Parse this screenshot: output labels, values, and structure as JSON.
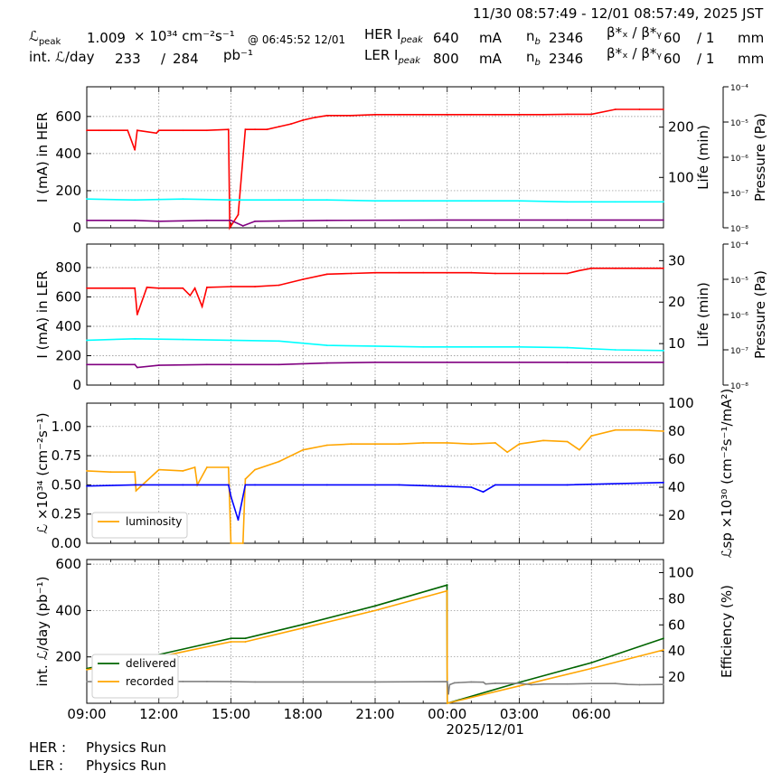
{
  "header": {
    "time_range": "11/30 08:57:49 - 12/01 08:57:49, 2025 JST",
    "lpeak_value": "1.009",
    "lpeak_unit": "× 10³⁴ cm⁻²s⁻¹",
    "lpeak_time": "@ 06:45:52 12/01",
    "intl_label": "int. ℒ/day",
    "intl_value": "233",
    "intl_slash": "/",
    "intl_total": "284",
    "intl_unit": "pb⁻¹",
    "her_label": "HER I",
    "her_ipeak": "640",
    "ler_label": "LER I",
    "ler_ipeak": "800",
    "ma": "mA",
    "nb_value_her": "2346",
    "nb_value_ler": "2346",
    "beta_label": "β*ₓ / β*ᵧ",
    "beta_x": "60",
    "beta_y": "/ 1",
    "beta_unit": "mm",
    "peak_sub": "peak"
  },
  "footer": {
    "her_status_label": "HER :",
    "her_status": "Physics Run",
    "ler_status_label": "LER :",
    "ler_status": "Physics Run"
  },
  "chart_data": [
    {
      "type": "line",
      "panel": "HER",
      "ylabel": "I (mA) in HER",
      "y2label": "Life (min)",
      "y3label": "Pressure (Pa)",
      "ylim": [
        0,
        760
      ],
      "yticks": [
        0,
        200,
        400,
        600
      ],
      "y2ticks": [
        100,
        200
      ],
      "y3ticks": [
        "10⁻⁸",
        "10⁻⁷",
        "10⁻⁶",
        "10⁻⁵",
        "10⁻⁴"
      ],
      "colors": {
        "current": "#ff0000",
        "life": "#00ffff",
        "pressure": "#800080"
      },
      "series": [
        {
          "color": "#ff0000",
          "x": [
            0,
            0.5,
            1.0,
            1.7,
            2.0,
            2.1,
            2.9,
            3.0,
            4.0,
            5.0,
            5.9,
            5.95,
            6.0,
            6.3,
            6.6,
            7.0,
            7.5,
            8.0,
            8.5,
            9.0,
            9.5,
            10.0,
            11.0,
            12.0,
            13.0,
            14.0,
            15.0,
            16.0,
            17.0,
            18.0,
            19.0,
            20.0,
            21.0,
            22.0,
            23.0,
            24.0
          ],
          "y": [
            525,
            525,
            525,
            525,
            420,
            525,
            510,
            525,
            525,
            525,
            530,
            0,
            10,
            70,
            530,
            530,
            530,
            545,
            560,
            580,
            595,
            605,
            605,
            610,
            610,
            610,
            610,
            610,
            610,
            610,
            610,
            612,
            612,
            638,
            638,
            638
          ]
        },
        {
          "color": "#800080",
          "x": [
            0,
            2,
            3,
            5,
            6,
            6.5,
            7,
            10,
            15,
            20,
            24
          ],
          "y": [
            40,
            40,
            35,
            40,
            40,
            10,
            35,
            40,
            42,
            42,
            42
          ]
        },
        {
          "color": "#00ffff",
          "x": [
            0,
            2,
            4,
            6,
            8,
            10,
            12,
            14,
            16,
            18,
            20,
            22,
            24
          ],
          "y": [
            155,
            150,
            155,
            150,
            150,
            150,
            145,
            145,
            145,
            145,
            140,
            140,
            140
          ]
        }
      ]
    },
    {
      "type": "line",
      "panel": "LER",
      "ylabel": "I (mA) in LER",
      "y2label": "Life (min)",
      "y3label": "Pressure (Pa)",
      "ylim": [
        0,
        960
      ],
      "yticks": [
        0,
        200,
        400,
        600,
        800
      ],
      "y2ticks": [
        10,
        20,
        30
      ],
      "y3ticks": [
        "10⁻⁸",
        "10⁻⁷",
        "10⁻⁶",
        "10⁻⁵",
        "10⁻⁴"
      ],
      "colors": {
        "current": "#ff0000",
        "life": "#00ffff",
        "pressure": "#800080"
      },
      "series": [
        {
          "color": "#ff0000",
          "x": [
            0,
            1.5,
            2.0,
            2.1,
            2.5,
            3.0,
            3.2,
            4.0,
            4.3,
            4.5,
            4.8,
            5.0,
            6.0,
            7.0,
            8.0,
            9.0,
            10.0,
            11.0,
            12.0,
            13.0,
            14.0,
            15.0,
            16.0,
            17.0,
            18.0,
            19.0,
            20.0,
            20.5,
            21.0,
            22.0,
            23.0,
            24.0
          ],
          "y": [
            660,
            660,
            660,
            480,
            665,
            660,
            660,
            660,
            610,
            660,
            535,
            665,
            670,
            670,
            680,
            720,
            755,
            760,
            765,
            765,
            765,
            765,
            765,
            760,
            760,
            760,
            760,
            780,
            795,
            795,
            795,
            795
          ]
        },
        {
          "color": "#800080",
          "x": [
            0,
            2,
            2.1,
            3,
            5,
            8,
            10,
            12,
            15,
            18,
            20,
            24
          ],
          "y": [
            140,
            140,
            120,
            135,
            140,
            140,
            150,
            155,
            155,
            155,
            155,
            155
          ]
        },
        {
          "color": "#00ffff",
          "x": [
            0,
            2,
            4,
            6,
            8,
            10,
            12,
            14,
            16,
            18,
            20,
            22,
            24
          ],
          "y": [
            305,
            315,
            310,
            305,
            300,
            270,
            265,
            260,
            260,
            260,
            255,
            240,
            235
          ]
        }
      ]
    },
    {
      "type": "line",
      "panel": "luminosity",
      "ylabel": "ℒ ×10³⁴ (cm⁻²s⁻¹)",
      "y2label": "ℒsp ×10³⁰ (cm⁻²s⁻¹/mA²)",
      "ylim": [
        0,
        1.2
      ],
      "yticks": [
        "0.00",
        "0.25",
        "0.50",
        "0.75",
        "1.00"
      ],
      "y2lim": [
        0,
        100
      ],
      "y2ticks": [
        20,
        40,
        60,
        80,
        100
      ],
      "legend": "lower left",
      "series": [
        {
          "name": "luminosity",
          "color": "#ffa500",
          "x": [
            0,
            1,
            2,
            2.05,
            3,
            4,
            4.5,
            4.6,
            5,
            5.9,
            6.0,
            6.5,
            6.6,
            7,
            8,
            9,
            10,
            11,
            12,
            13,
            14,
            15,
            16,
            17,
            17.5,
            18,
            19,
            20,
            20.5,
            21,
            22,
            23,
            24
          ],
          "y": [
            0.62,
            0.61,
            0.61,
            0.45,
            0.63,
            0.62,
            0.65,
            0.5,
            0.65,
            0.65,
            0.0,
            0.0,
            0.55,
            0.63,
            0.7,
            0.8,
            0.84,
            0.85,
            0.85,
            0.85,
            0.86,
            0.86,
            0.85,
            0.86,
            0.78,
            0.85,
            0.88,
            0.87,
            0.8,
            0.92,
            0.97,
            0.97,
            0.96
          ]
        },
        {
          "color": "#0000ff",
          "x": [
            0,
            2,
            4,
            5.9,
            6.0,
            6.3,
            6.6,
            7,
            10,
            13,
            16,
            16.5,
            17,
            20,
            24
          ],
          "y": [
            0.49,
            0.5,
            0.5,
            0.5,
            0.4,
            0.2,
            0.5,
            0.5,
            0.5,
            0.5,
            0.48,
            0.44,
            0.5,
            0.5,
            0.52
          ]
        }
      ]
    },
    {
      "type": "line",
      "panel": "integrated",
      "ylabel": "int. ℒ/day (pb⁻¹)",
      "y2label": "Efficiency (%)",
      "ylim": [
        0,
        620
      ],
      "yticks": [
        200,
        400,
        600
      ],
      "y2lim": [
        0,
        110
      ],
      "y2ticks": [
        20,
        40,
        60,
        80,
        100
      ],
      "x_tick_labels": [
        "09:00",
        "12:00",
        "15:00",
        "18:00",
        "21:00",
        "00:00",
        "03:00",
        "06:00"
      ],
      "x_date_label": "2025/12/01",
      "legend": "lower left",
      "series": [
        {
          "name": "delivered",
          "color": "#006400",
          "x": [
            0,
            3,
            6,
            6.6,
            9,
            12,
            15,
            14.99,
            15.0,
            18,
            21,
            24
          ],
          "y": [
            150,
            210,
            280,
            280,
            340,
            420,
            510,
            510,
            0,
            90,
            175,
            280
          ]
        },
        {
          "name": "recorded",
          "color": "#ffa500",
          "x": [
            0,
            3,
            6,
            6.6,
            9,
            12,
            15,
            14.99,
            15.0,
            18,
            21,
            24
          ],
          "y": [
            145,
            200,
            265,
            265,
            325,
            400,
            485,
            485,
            0,
            75,
            150,
            230
          ]
        },
        {
          "color": "#808080",
          "x": [
            0,
            3,
            4,
            5,
            6,
            7,
            9,
            12,
            15,
            15.05,
            15.1,
            15.3,
            16,
            16.5,
            16.6,
            17,
            18,
            18.5,
            19,
            20,
            21,
            22,
            22.5,
            23,
            24
          ],
          "y": [
            93,
            94,
            94,
            94,
            93,
            92,
            92,
            92,
            93,
            40,
            80,
            88,
            92,
            91,
            83,
            86,
            86,
            80,
            83,
            83,
            85,
            85,
            81,
            80,
            81
          ]
        }
      ]
    }
  ]
}
